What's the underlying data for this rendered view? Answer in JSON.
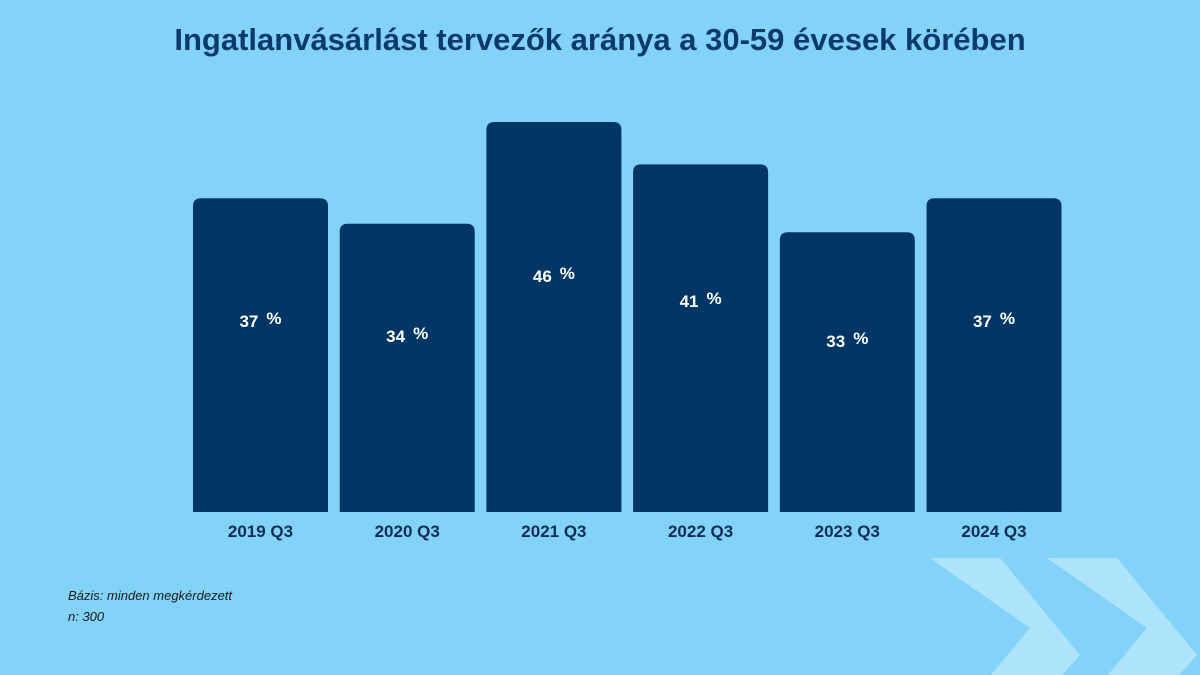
{
  "colors": {
    "background": "#82d3f7",
    "title": "#0d3a6e",
    "bar": "#003665",
    "bar_label": "#ffffff",
    "axis_label": "#0f2c57",
    "chevron": "#b6e6fb"
  },
  "chart_data": {
    "type": "bar",
    "title": "Ingatlanvásárlást tervezők aránya a 30-59 évesek körében",
    "categories": [
      "2019 Q3",
      "2020 Q3",
      "2021 Q3",
      "2022 Q3",
      "2023 Q3",
      "2024 Q3"
    ],
    "values": [
      37,
      34,
      46,
      41,
      33,
      37
    ],
    "value_labels": [
      "37",
      "34",
      "46",
      "41",
      "33",
      "37"
    ],
    "unit": "%",
    "xlabel": "",
    "ylabel": "",
    "ylim": [
      0,
      46
    ],
    "grid": false,
    "legend": "none"
  },
  "footnote": {
    "base": "Bázis: minden megkérdezett",
    "sample": "n: 300"
  }
}
